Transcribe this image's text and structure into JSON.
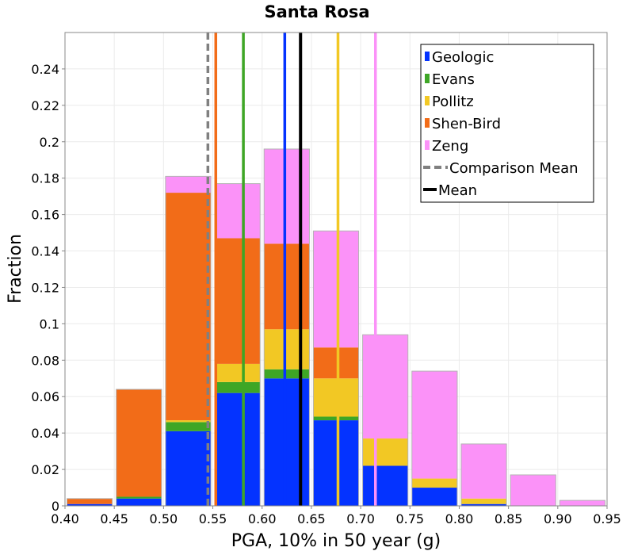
{
  "chart_data": {
    "type": "bar",
    "stacked": true,
    "title": "Santa Rosa",
    "xlabel": "PGA, 10% in 50 year (g)",
    "ylabel": "Fraction",
    "xlim": [
      0.4,
      0.95
    ],
    "ylim": [
      0,
      0.26
    ],
    "grid": true,
    "bin_width": 0.05,
    "x_ticks": [
      0.4,
      0.45,
      0.5,
      0.55,
      0.6,
      0.65,
      0.7,
      0.75,
      0.8,
      0.85,
      0.9,
      0.95
    ],
    "x_tick_labels": [
      "0.40",
      "0.45",
      "0.50",
      "0.55",
      "0.60",
      "0.65",
      "0.70",
      "0.75",
      "0.80",
      "0.85",
      "0.90",
      "0.95"
    ],
    "y_ticks": [
      0,
      0.02,
      0.04,
      0.06,
      0.08,
      0.1,
      0.12,
      0.14,
      0.16,
      0.18,
      0.2,
      0.22,
      0.24
    ],
    "y_tick_labels": [
      "0",
      "0.02",
      "0.04",
      "0.06",
      "0.08",
      "0.1",
      "0.12",
      "0.14",
      "0.16",
      "0.18",
      "0.2",
      "0.22",
      "0.24"
    ],
    "bins": [
      0.4,
      0.45,
      0.5,
      0.55,
      0.6,
      0.65,
      0.7,
      0.75,
      0.8,
      0.85,
      0.9
    ],
    "series": [
      {
        "name": "Geologic",
        "color": "#0433ff",
        "values": [
          0.001,
          0.004,
          0.041,
          0.062,
          0.07,
          0.047,
          0.022,
          0.01,
          0.001,
          0.0,
          0.0
        ]
      },
      {
        "name": "Evans",
        "color": "#3ea626",
        "values": [
          0.0,
          0.001,
          0.005,
          0.006,
          0.005,
          0.002,
          0.0,
          0.0,
          0.0,
          0.0,
          0.0
        ]
      },
      {
        "name": "Pollitz",
        "color": "#f2c824",
        "values": [
          0.0,
          0.0,
          0.001,
          0.01,
          0.022,
          0.021,
          0.015,
          0.005,
          0.003,
          0.0,
          0.0
        ]
      },
      {
        "name": "Shen-Bird",
        "color": "#f26c18",
        "values": [
          0.003,
          0.059,
          0.125,
          0.069,
          0.047,
          0.017,
          0.0,
          0.0,
          0.0,
          0.0,
          0.0
        ]
      },
      {
        "name": "Zeng",
        "color": "#fb92f8",
        "values": [
          0.0,
          0.0,
          0.009,
          0.03,
          0.052,
          0.064,
          0.057,
          0.059,
          0.03,
          0.017,
          0.003
        ]
      }
    ],
    "vertical_lines": [
      {
        "name": "Shen-Bird",
        "x": 0.553,
        "color": "#f26c18",
        "style": "solid"
      },
      {
        "name": "Evans",
        "x": 0.581,
        "color": "#3ea626",
        "style": "solid"
      },
      {
        "name": "Geologic",
        "x": 0.623,
        "color": "#0433ff",
        "style": "solid"
      },
      {
        "name": "Pollitz",
        "x": 0.677,
        "color": "#f2c824",
        "style": "solid"
      },
      {
        "name": "Zeng",
        "x": 0.715,
        "color": "#fb92f8",
        "style": "solid"
      },
      {
        "name": "Comparison Mean",
        "x": 0.545,
        "color": "#808080",
        "style": "dashed"
      },
      {
        "name": "Mean",
        "x": 0.639,
        "color": "#000000",
        "style": "solid"
      }
    ],
    "legend": {
      "position": "top-right",
      "entries": [
        {
          "label": "Geologic",
          "color": "#0433ff",
          "kind": "box"
        },
        {
          "label": "Evans",
          "color": "#3ea626",
          "kind": "box"
        },
        {
          "label": "Pollitz",
          "color": "#f2c824",
          "kind": "box"
        },
        {
          "label": "Shen-Bird",
          "color": "#f26c18",
          "kind": "box"
        },
        {
          "label": "Zeng",
          "color": "#fb92f8",
          "kind": "box"
        },
        {
          "label": "Comparison Mean",
          "color": "#808080",
          "kind": "dashed"
        },
        {
          "label": "Mean",
          "color": "#000000",
          "kind": "line"
        }
      ]
    }
  }
}
